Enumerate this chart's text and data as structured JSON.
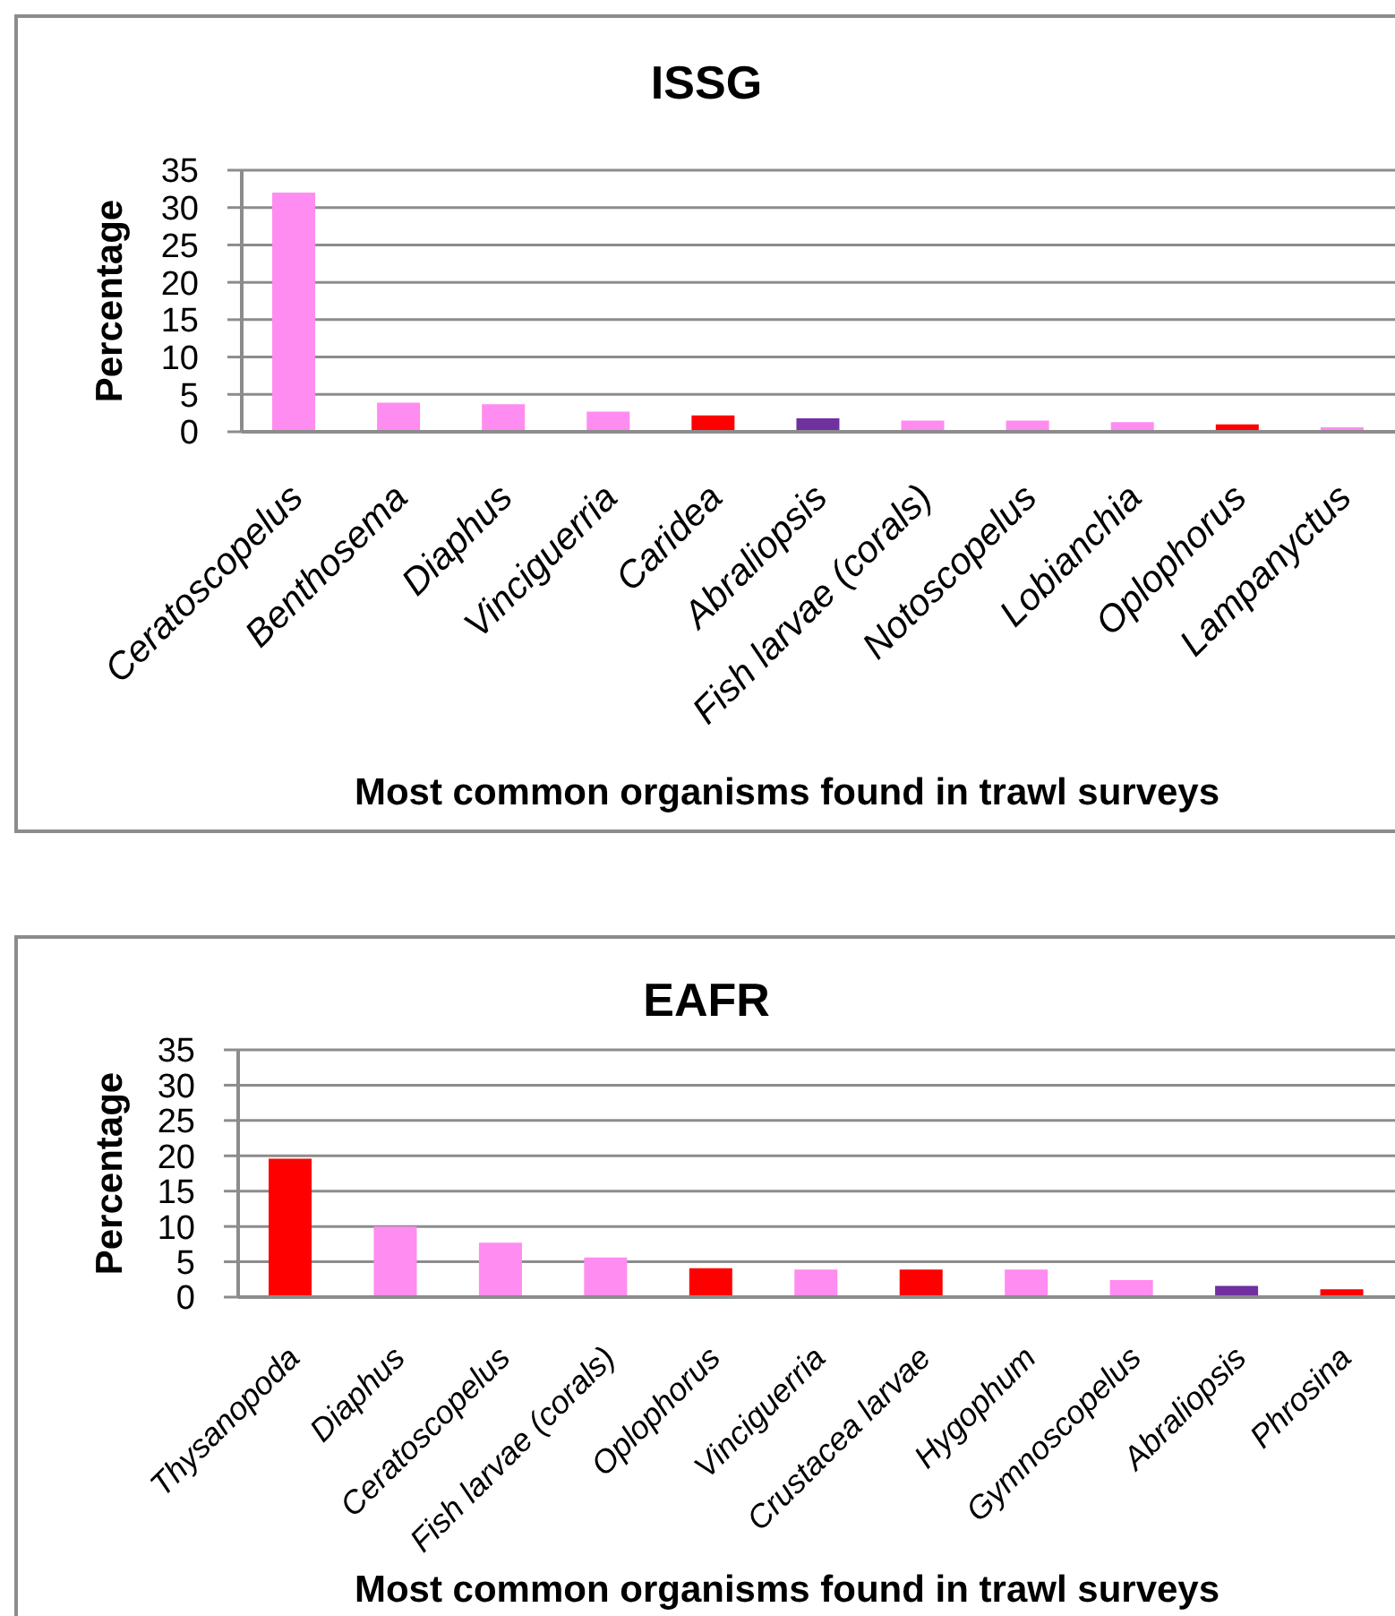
{
  "chart_data": [
    {
      "type": "bar",
      "title": "ISSG",
      "xlabel": "Most common organisms found in trawl surveys",
      "ylabel": "Percentage",
      "categories": [
        "Ceratoscopelus",
        "Benthosema",
        "Diaphus",
        "Vinciguerria",
        "Caridea",
        "Abraliopsis",
        "Fish larvae (corals)",
        "Notoscopelus",
        "Lobianchia",
        "Oplophorus",
        "Lampanyctus"
      ],
      "values": [
        32.0,
        3.9,
        3.7,
        2.7,
        2.2,
        1.8,
        1.5,
        1.5,
        1.3,
        1.0,
        0.6
      ],
      "colors": [
        "#ff8cf0",
        "#ff8cf0",
        "#ff8cf0",
        "#ff8cf0",
        "#ff0000",
        "#7030a0",
        "#ff8cf0",
        "#ff8cf0",
        "#ff8cf0",
        "#ff0000",
        "#ff8cf0"
      ],
      "ylim": [
        0,
        35
      ],
      "yticks": [
        0,
        5,
        10,
        15,
        20,
        25,
        30,
        35
      ],
      "grid": "y"
    },
    {
      "type": "bar",
      "title": "EAFR",
      "xlabel": "Most common organisms found in trawl surveys",
      "ylabel": "Percentage",
      "categories": [
        "Thysanopoda",
        "Diaphus",
        "Ceratoscopelus",
        "Fish larvae (corals)",
        "Oplophorus",
        "Vinciguerria",
        "Crustacea larvae",
        "Hygophum",
        "Gymnoscopelus",
        "Abraliopsis",
        "Phrosina"
      ],
      "values": [
        19.6,
        10.0,
        7.7,
        5.6,
        4.1,
        3.9,
        3.9,
        3.9,
        2.4,
        1.6,
        1.1
      ],
      "colors": [
        "#ff0000",
        "#ff8cf0",
        "#ff8cf0",
        "#ff8cf0",
        "#ff0000",
        "#ff8cf0",
        "#ff0000",
        "#ff8cf0",
        "#ff8cf0",
        "#7030a0",
        "#ff0000"
      ],
      "ylim": [
        0,
        35
      ],
      "yticks": [
        0,
        5,
        10,
        15,
        20,
        25,
        30,
        35
      ],
      "grid": "y"
    }
  ]
}
